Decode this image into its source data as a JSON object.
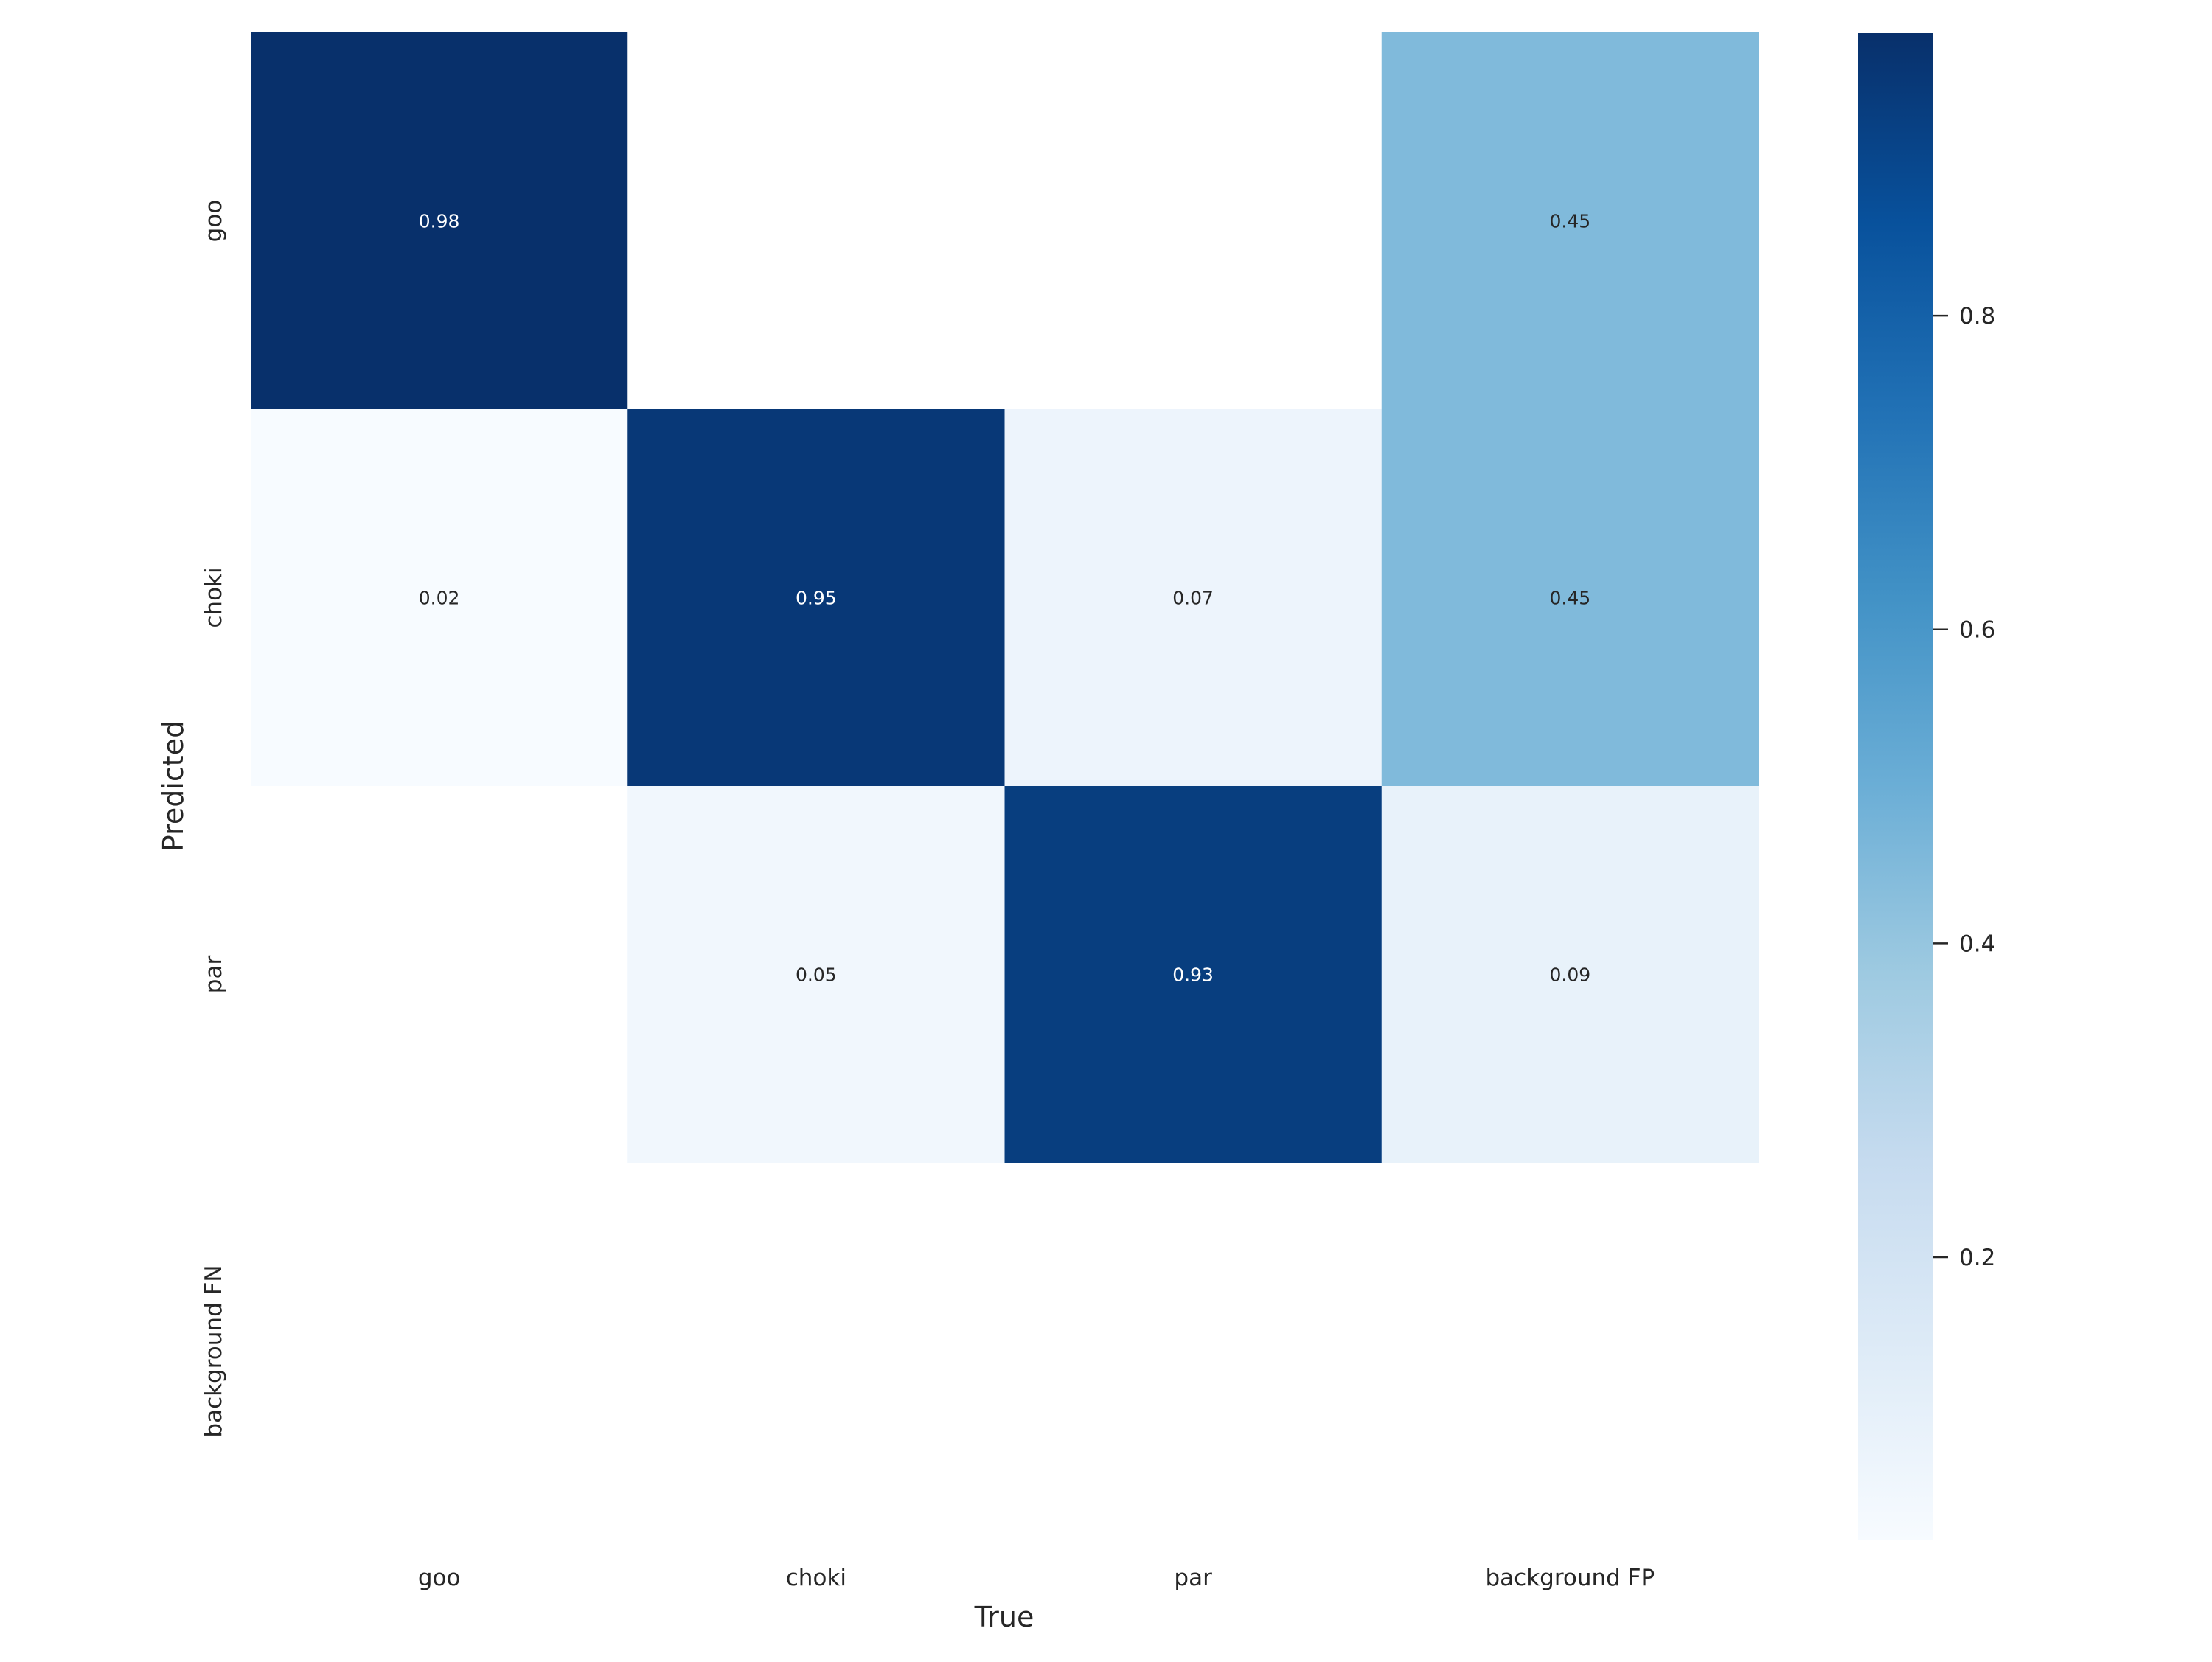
{
  "chart_data": {
    "type": "heatmap",
    "title": "",
    "xlabel": "True",
    "ylabel": "Predicted",
    "x_categories": [
      "goo",
      "choki",
      "par",
      "background FP"
    ],
    "y_categories": [
      "goo",
      "choki",
      "par",
      "background FN"
    ],
    "values": [
      [
        0.98,
        null,
        null,
        0.45
      ],
      [
        0.02,
        0.95,
        0.07,
        0.45
      ],
      [
        null,
        0.05,
        0.93,
        0.09
      ],
      [
        null,
        null,
        null,
        null
      ]
    ],
    "colormap": "Blues",
    "colorbar": {
      "range": [
        0.02,
        0.98
      ],
      "ticks": [
        0.2,
        0.4,
        0.6,
        0.8
      ],
      "tick_labels": [
        "0.2",
        "0.4",
        "0.6",
        "0.8"
      ]
    },
    "annotation_colors": {
      "dark_cell": "#ffffff",
      "light_cell": "#262626"
    },
    "empty_cell_color": "#ffffff",
    "grid": false
  }
}
